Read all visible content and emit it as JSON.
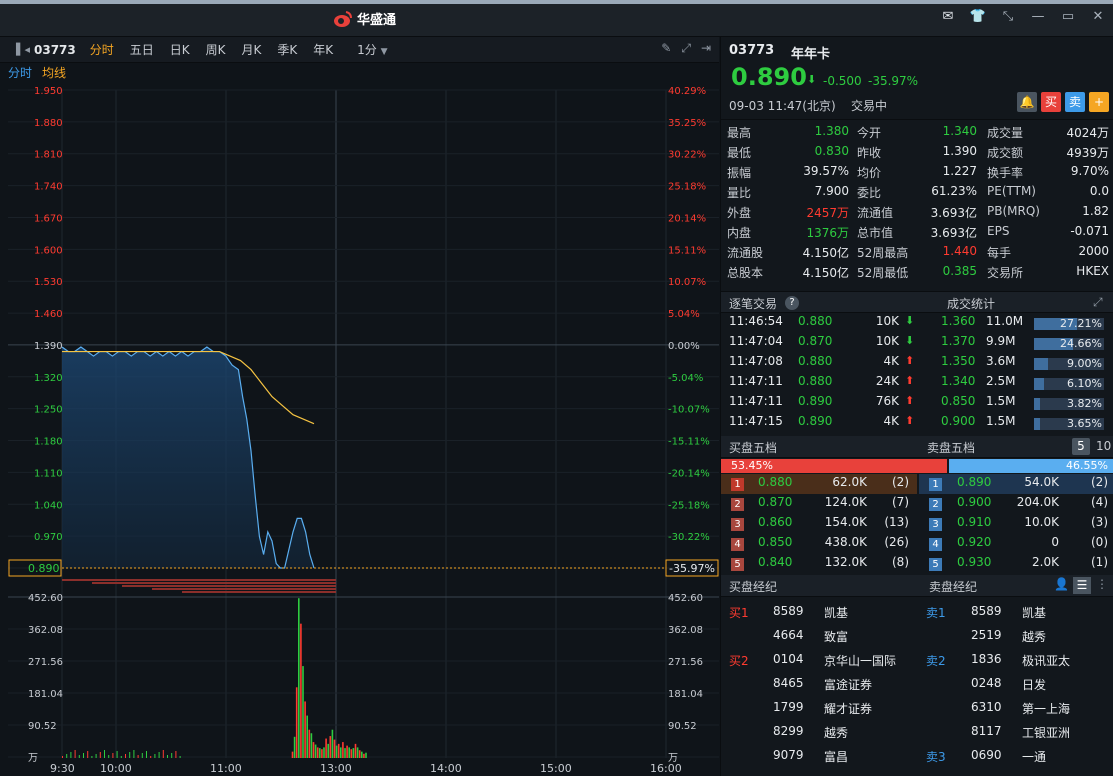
{
  "app": {
    "brand": "华盛通"
  },
  "toolbar": {
    "code": "03773",
    "tabs": [
      "分时",
      "五日",
      "日K",
      "周K",
      "月K",
      "季K",
      "年K"
    ],
    "active_tab": 0,
    "period": "1分"
  },
  "subbar": {
    "a": "分时",
    "b": "均线"
  },
  "chart_data": {
    "type": "line",
    "price_ticks": [
      "1.950",
      "1.880",
      "1.810",
      "1.740",
      "1.670",
      "1.600",
      "1.530",
      "1.460",
      "1.390",
      "1.320",
      "1.250",
      "1.180",
      "1.110",
      "1.040",
      "0.970",
      "0.890"
    ],
    "pct_ticks": [
      "40.29%",
      "35.25%",
      "30.22%",
      "25.18%",
      "20.14%",
      "15.11%",
      "10.07%",
      "5.04%",
      "0.00%",
      "-5.04%",
      "-10.07%",
      "-15.11%",
      "-20.14%",
      "-25.18%",
      "-30.22%",
      "-35.97%"
    ],
    "x_ticks": [
      "9:30",
      "10:00",
      "11:00",
      "13:00",
      "14:00",
      "15:00",
      "16:00"
    ],
    "vol_ticks": [
      "452.60",
      "362.08",
      "271.56",
      "181.04",
      "90.52",
      "万"
    ],
    "current_price_label": "0.890",
    "current_pct_label": "-35.97%",
    "ylim": [
      0.89,
      1.95
    ],
    "prev_close": 1.39,
    "price_series": [
      [
        0,
        1.38
      ],
      [
        3,
        1.37
      ],
      [
        6,
        1.37
      ],
      [
        9,
        1.38
      ],
      [
        12,
        1.37
      ],
      [
        15,
        1.36
      ],
      [
        18,
        1.37
      ],
      [
        21,
        1.37
      ],
      [
        24,
        1.36
      ],
      [
        27,
        1.37
      ],
      [
        30,
        1.37
      ],
      [
        33,
        1.36
      ],
      [
        36,
        1.37
      ],
      [
        39,
        1.37
      ],
      [
        42,
        1.36
      ],
      [
        45,
        1.37
      ],
      [
        48,
        1.36
      ],
      [
        51,
        1.37
      ],
      [
        54,
        1.36
      ],
      [
        57,
        1.37
      ],
      [
        60,
        1.36
      ],
      [
        63,
        1.37
      ],
      [
        66,
        1.37
      ],
      [
        69,
        1.38
      ],
      [
        72,
        1.37
      ],
      [
        75,
        1.37
      ],
      [
        78,
        1.36
      ],
      [
        81,
        1.34
      ],
      [
        84,
        1.33
      ],
      [
        86,
        1.27
      ],
      [
        88,
        1.22
      ],
      [
        90,
        1.15
      ],
      [
        92,
        1.05
      ],
      [
        94,
        0.96
      ],
      [
        96,
        0.92
      ],
      [
        98,
        0.97
      ],
      [
        100,
        0.95
      ],
      [
        102,
        0.9
      ],
      [
        104,
        0.89
      ],
      [
        106,
        0.89
      ],
      [
        108,
        0.93
      ],
      [
        110,
        0.97
      ],
      [
        112,
        1.0
      ],
      [
        114,
        1.0
      ],
      [
        116,
        0.97
      ],
      [
        118,
        0.92
      ],
      [
        120,
        0.89
      ]
    ],
    "avg_series": [
      [
        0,
        1.37
      ],
      [
        20,
        1.37
      ],
      [
        40,
        1.37
      ],
      [
        60,
        1.37
      ],
      [
        75,
        1.37
      ],
      [
        80,
        1.36
      ],
      [
        85,
        1.35
      ],
      [
        90,
        1.33
      ],
      [
        95,
        1.3
      ],
      [
        100,
        1.27
      ],
      [
        105,
        1.25
      ],
      [
        110,
        1.23
      ],
      [
        115,
        1.22
      ],
      [
        120,
        1.21
      ]
    ],
    "volume_series": [
      [
        57,
        18
      ],
      [
        58,
        60
      ],
      [
        59,
        200
      ],
      [
        60,
        452
      ],
      [
        61,
        380
      ],
      [
        62,
        260
      ],
      [
        63,
        160
      ],
      [
        64,
        120
      ],
      [
        65,
        80
      ],
      [
        66,
        70
      ],
      [
        67,
        45
      ],
      [
        68,
        38
      ],
      [
        69,
        30
      ],
      [
        70,
        28
      ],
      [
        71,
        25
      ],
      [
        72,
        30
      ],
      [
        73,
        55
      ],
      [
        74,
        40
      ],
      [
        75,
        62
      ],
      [
        76,
        80
      ],
      [
        77,
        52
      ],
      [
        78,
        35
      ],
      [
        79,
        40
      ],
      [
        80,
        30
      ],
      [
        81,
        45
      ],
      [
        82,
        28
      ],
      [
        83,
        35
      ],
      [
        84,
        30
      ],
      [
        85,
        25
      ],
      [
        86,
        28
      ],
      [
        87,
        40
      ],
      [
        88,
        30
      ],
      [
        89,
        22
      ],
      [
        90,
        18
      ],
      [
        91,
        12
      ],
      [
        92,
        15
      ]
    ]
  },
  "right": {
    "code": "03773",
    "name": "年年卡",
    "price": "0.890",
    "change": "-0.500",
    "change_pct": "-35.97%",
    "time": "09-03  11:47(北京)",
    "status": "交易中",
    "btn_buy": "买",
    "btn_sell": "卖",
    "btn_add": "+",
    "stats": [
      [
        {
          "l": "最高",
          "v": "1.380",
          "c": "green"
        },
        {
          "l": "今开",
          "v": "1.340",
          "c": "green"
        },
        {
          "l": "成交量",
          "v": "4024万",
          "c": "white"
        }
      ],
      [
        {
          "l": "最低",
          "v": "0.830",
          "c": "green"
        },
        {
          "l": "昨收",
          "v": "1.390",
          "c": "white"
        },
        {
          "l": "成交额",
          "v": "4939万",
          "c": "white"
        }
      ],
      [
        {
          "l": "振幅",
          "v": "39.57%",
          "c": "white"
        },
        {
          "l": "均价",
          "v": "1.227",
          "c": "white"
        },
        {
          "l": "换手率",
          "v": "9.70%",
          "c": "white"
        }
      ],
      [
        {
          "l": "量比",
          "v": "7.900",
          "c": "white"
        },
        {
          "l": "委比",
          "v": "61.23%",
          "c": "white"
        },
        {
          "l": "PE(TTM)",
          "v": "0.0",
          "c": "white"
        }
      ],
      [
        {
          "l": "外盘",
          "v": "2457万",
          "c": "red"
        },
        {
          "l": "流通值",
          "v": "3.693亿",
          "c": "white"
        },
        {
          "l": "PB(MRQ)",
          "v": "1.82",
          "c": "white"
        }
      ],
      [
        {
          "l": "内盘",
          "v": "1376万",
          "c": "green"
        },
        {
          "l": "总市值",
          "v": "3.693亿",
          "c": "white"
        },
        {
          "l": "EPS",
          "v": "-0.071",
          "c": "white"
        }
      ],
      [
        {
          "l": "流通股",
          "v": "4.150亿",
          "c": "white"
        },
        {
          "l": "52周最高",
          "v": "1.440",
          "c": "red"
        },
        {
          "l": "每手",
          "v": "2000",
          "c": "white"
        }
      ],
      [
        {
          "l": "总股本",
          "v": "4.150亿",
          "c": "white"
        },
        {
          "l": "52周最低",
          "v": "0.385",
          "c": "green"
        },
        {
          "l": "交易所",
          "v": "HKEX",
          "c": "white"
        }
      ]
    ],
    "trades_title": "逐笔交易",
    "stats_title": "成交统计",
    "trades": [
      {
        "t": "11:46:54",
        "p": "0.880",
        "q": "10K",
        "d": "down"
      },
      {
        "t": "11:47:04",
        "p": "0.870",
        "q": "10K",
        "d": "down"
      },
      {
        "t": "11:47:08",
        "p": "0.880",
        "q": "4K",
        "d": "up"
      },
      {
        "t": "11:47:11",
        "p": "0.880",
        "q": "24K",
        "d": "up"
      },
      {
        "t": "11:47:11",
        "p": "0.890",
        "q": "76K",
        "d": "up"
      },
      {
        "t": "11:47:15",
        "p": "0.890",
        "q": "4K",
        "d": "up"
      }
    ],
    "vol_stats": [
      {
        "p": "1.360",
        "v": "11.0M",
        "pct": 27.21,
        "pl": "27.21%"
      },
      {
        "p": "1.370",
        "v": "9.9M",
        "pct": 24.66,
        "pl": "24.66%"
      },
      {
        "p": "1.350",
        "v": "3.6M",
        "pct": 9.0,
        "pl": "9.00%"
      },
      {
        "p": "1.340",
        "v": "2.5M",
        "pct": 6.1,
        "pl": "6.10%"
      },
      {
        "p": "0.850",
        "v": "1.5M",
        "pct": 3.82,
        "pl": "3.82%"
      },
      {
        "p": "0.900",
        "v": "1.5M",
        "pct": 3.65,
        "pl": "3.65%"
      }
    ],
    "bid_title": "买盘五档",
    "ask_title": "卖盘五档",
    "depth_5": "5",
    "depth_10": "10",
    "bid_ratio": 53.45,
    "bid_ratio_label": "53.45%",
    "ask_ratio_label": "46.55%",
    "bids": [
      {
        "n": "1",
        "p": "0.880",
        "v": "62.0K",
        "c": "(2)"
      },
      {
        "n": "2",
        "p": "0.870",
        "v": "124.0K",
        "c": "(7)"
      },
      {
        "n": "3",
        "p": "0.860",
        "v": "154.0K",
        "c": "(13)"
      },
      {
        "n": "4",
        "p": "0.850",
        "v": "438.0K",
        "c": "(26)"
      },
      {
        "n": "5",
        "p": "0.840",
        "v": "132.0K",
        "c": "(8)"
      }
    ],
    "asks": [
      {
        "n": "1",
        "p": "0.890",
        "v": "54.0K",
        "c": "(2)"
      },
      {
        "n": "2",
        "p": "0.900",
        "v": "204.0K",
        "c": "(4)"
      },
      {
        "n": "3",
        "p": "0.910",
        "v": "10.0K",
        "c": "(3)"
      },
      {
        "n": "4",
        "p": "0.920",
        "v": "0",
        "c": "(0)"
      },
      {
        "n": "5",
        "p": "0.930",
        "v": "2.0K",
        "c": "(1)"
      }
    ],
    "bid_broker_title": "买盘经纪",
    "ask_broker_title": "卖盘经纪",
    "bid_brokers": [
      {
        "tag": "买1",
        "id": "8589",
        "name": "凯基"
      },
      {
        "tag": "",
        "id": "4664",
        "name": "致富"
      },
      {
        "tag": "买2",
        "id": "0104",
        "name": "京华山一国际"
      },
      {
        "tag": "",
        "id": "8465",
        "name": "富途证券"
      },
      {
        "tag": "",
        "id": "1799",
        "name": "耀才证券"
      },
      {
        "tag": "",
        "id": "8299",
        "name": "越秀"
      },
      {
        "tag": "",
        "id": "9079",
        "name": "富昌"
      }
    ],
    "ask_brokers": [
      {
        "tag": "卖1",
        "id": "8589",
        "name": "凯基"
      },
      {
        "tag": "",
        "id": "2519",
        "name": "越秀"
      },
      {
        "tag": "卖2",
        "id": "1836",
        "name": "极讯亚太"
      },
      {
        "tag": "",
        "id": "0248",
        "name": "日发"
      },
      {
        "tag": "",
        "id": "6310",
        "name": "第一上海"
      },
      {
        "tag": "",
        "id": "8117",
        "name": "工银亚洲"
      },
      {
        "tag": "卖3",
        "id": "0690",
        "name": "一通"
      }
    ]
  },
  "colors": {
    "up": "#ff3b30",
    "down": "#2ecc40",
    "accent": "#f5a623",
    "blue": "#3d9ae8"
  }
}
